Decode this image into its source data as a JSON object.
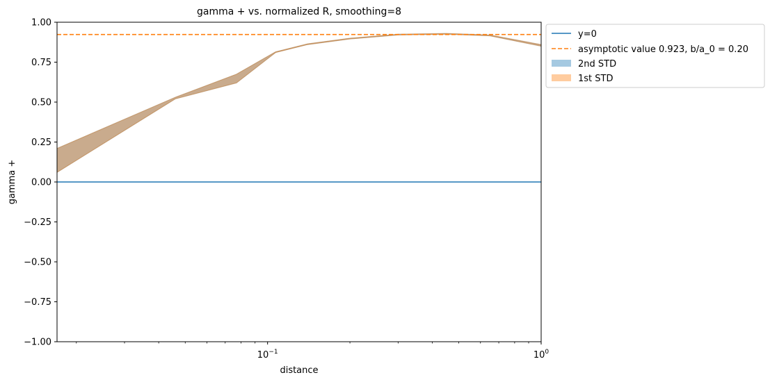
{
  "chart_data": {
    "type": "line",
    "title": "gamma + vs. normalized R, smoothing=8",
    "xlabel": "distance",
    "ylabel": "gamma +",
    "xscale": "log",
    "xlim": [
      0.017,
      1.0
    ],
    "ylim": [
      -1.0,
      1.0
    ],
    "grid": false,
    "legend_position": "outside-upper-right",
    "yticks": [
      -1.0,
      -0.75,
      -0.5,
      -0.25,
      0.0,
      0.25,
      0.5,
      0.75,
      1.0
    ],
    "ytick_labels": [
      "−1.00",
      "−0.75",
      "−0.50",
      "−0.25",
      "0.00",
      "0.25",
      "0.50",
      "0.75",
      "1.00"
    ],
    "xticks_major": [
      0.1,
      1.0
    ],
    "xtick_labels": [
      {
        "base": "10",
        "exp": "−1"
      },
      {
        "base": "10",
        "exp": "0"
      }
    ],
    "series": [
      {
        "name": "y=0",
        "type": "hline",
        "y": 0.0,
        "color": "#1f77b4",
        "style": "solid"
      },
      {
        "name": "asymptotic value 0.923, b/a_0 = 0.20",
        "type": "hline",
        "y": 0.923,
        "color": "#ff7f0e",
        "style": "dashed"
      },
      {
        "name": "2nd STD",
        "type": "band",
        "color": "#1f77b4",
        "alpha": 0.4,
        "x": [
          0.017,
          0.046,
          0.077,
          0.107,
          0.14,
          0.2,
          0.3,
          0.45,
          0.65,
          1.0
        ],
        "upper": [
          0.21,
          0.53,
          0.675,
          0.815,
          0.865,
          0.9,
          0.925,
          0.93,
          0.92,
          0.86
        ],
        "lower": [
          0.06,
          0.52,
          0.62,
          0.81,
          0.86,
          0.895,
          0.92,
          0.925,
          0.915,
          0.85
        ]
      },
      {
        "name": "1st STD",
        "type": "band",
        "color": "#ff7f0e",
        "alpha": 0.4,
        "x": [
          0.017,
          0.046,
          0.077,
          0.107,
          0.14,
          0.2,
          0.3,
          0.45,
          0.65,
          1.0
        ],
        "upper": [
          0.21,
          0.53,
          0.675,
          0.815,
          0.865,
          0.9,
          0.925,
          0.93,
          0.92,
          0.86
        ],
        "lower": [
          0.06,
          0.52,
          0.62,
          0.81,
          0.86,
          0.895,
          0.92,
          0.925,
          0.915,
          0.85
        ]
      }
    ]
  }
}
